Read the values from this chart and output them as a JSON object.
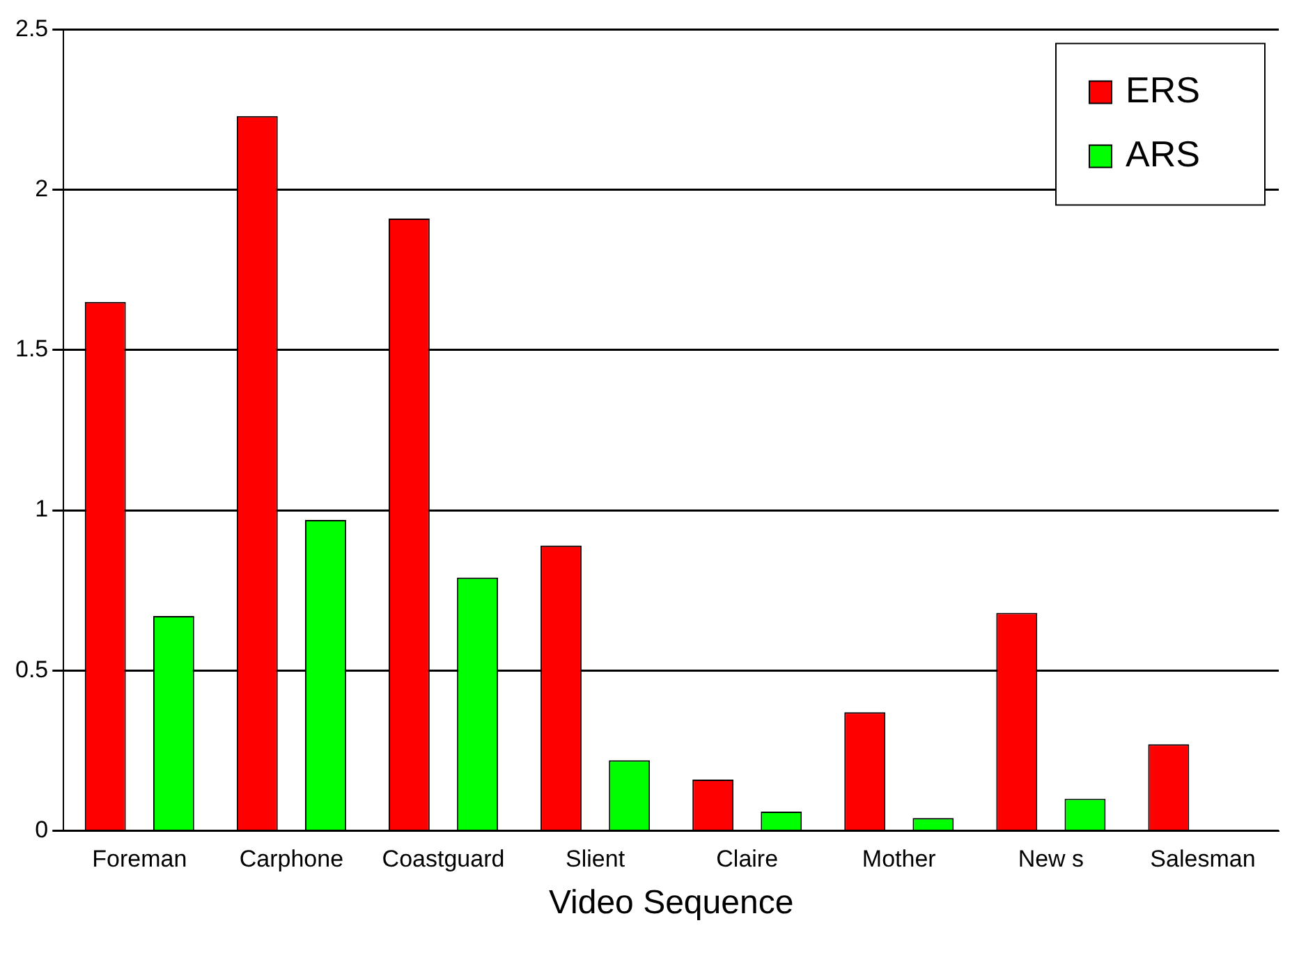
{
  "chart_data": {
    "type": "bar",
    "xlabel": "Video Sequence",
    "categories": [
      "Foreman",
      "Carphone",
      "Coastguard",
      "Slient",
      "Claire",
      "Mother",
      "New s",
      "Salesman"
    ],
    "series": [
      {
        "name": "ERS",
        "color": "#ff0000",
        "values": [
          1.65,
          2.23,
          1.91,
          0.89,
          0.16,
          0.37,
          0.68,
          0.27
        ]
      },
      {
        "name": "ARS",
        "color": "#00ff00",
        "values": [
          0.67,
          0.97,
          0.79,
          0.22,
          0.06,
          0.04,
          0.1,
          null
        ]
      }
    ],
    "ylim": [
      0,
      2.5
    ],
    "yticks": [
      0,
      0.5,
      1,
      1.5,
      2,
      2.5
    ],
    "grid": "y",
    "legend": "top right"
  }
}
